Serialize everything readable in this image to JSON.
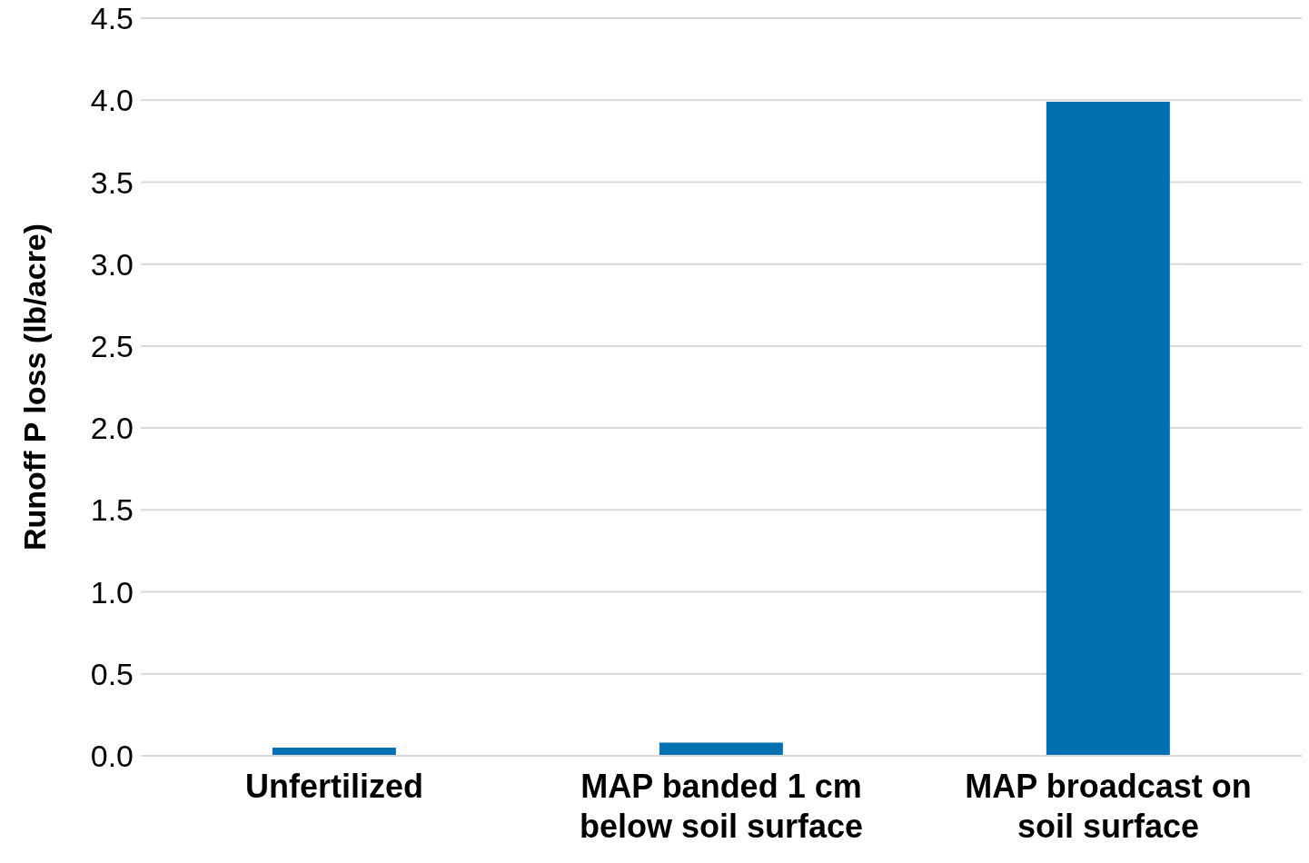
{
  "chart_data": {
    "type": "bar",
    "ylabel": "Runoff P loss (lb/acre)",
    "categories": [
      "Unfertilized",
      "MAP banded 1 cm below soil surface",
      "MAP broadcast on soil surface"
    ],
    "values": [
      0.05,
      0.08,
      3.99
    ],
    "color": "#0070b0",
    "ylim": [
      0,
      4.5
    ],
    "yticks": [
      {
        "value": 0,
        "label": "0.0"
      },
      {
        "value": 0.5,
        "label": "0.5"
      },
      {
        "value": 1,
        "label": "1.0"
      },
      {
        "value": 1.5,
        "label": "1.5"
      },
      {
        "value": 2,
        "label": "2.0"
      },
      {
        "value": 2.5,
        "label": "2.5"
      },
      {
        "value": 3,
        "label": "3.0"
      },
      {
        "value": 3.5,
        "label": "3.5"
      },
      {
        "value": 4,
        "label": "4.0"
      },
      {
        "value": 4.5,
        "label": "4.5"
      }
    ],
    "grid": "y"
  }
}
